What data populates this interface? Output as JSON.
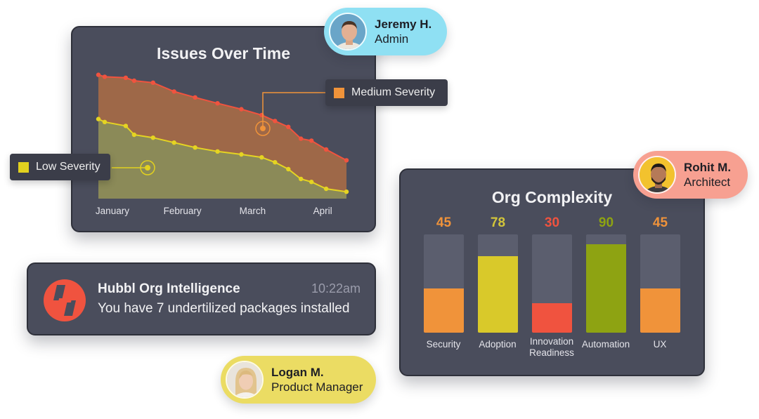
{
  "issues_chart": {
    "title": "Issues Over Time",
    "chart_data": {
      "type": "area",
      "x_labels": [
        "January",
        "February",
        "March",
        "April"
      ],
      "series": [
        {
          "name": "Medium Severity",
          "color": "#f0533f",
          "values": [
            101,
            99,
            98,
            95,
            93,
            84,
            78,
            72,
            66,
            60,
            54,
            48,
            36,
            34,
            25,
            14
          ]
        },
        {
          "name": "Low Severity",
          "color": "#e5d422",
          "values": [
            56,
            53,
            49,
            40,
            37,
            32,
            27,
            23,
            20,
            17,
            12,
            5,
            -5,
            -8,
            -15,
            -18
          ]
        }
      ],
      "point_x": [
        0,
        0.09,
        0.39,
        0.51,
        0.78,
        1.08,
        1.38,
        1.7,
        2.04,
        2.33,
        2.52,
        2.71,
        2.89,
        3.04,
        3.25,
        3.54
      ],
      "x_ticks_at": [
        0.2,
        1.2,
        2.2,
        3.2
      ],
      "ylim": [
        -25,
        105
      ],
      "xlim": [
        0,
        3.6
      ],
      "grid": false,
      "legend_placement": "callouts"
    },
    "legend": {
      "medium_label": "Medium Severity",
      "low_label": "Low Severity",
      "medium_color": "#f0933a",
      "low_color": "#e2d11f"
    }
  },
  "notification": {
    "title": "Hubbl Org Intelligence",
    "time": "10:22am",
    "message": "You have 7 undertilized packages installed",
    "logo": "hubbl-logo-icon",
    "logo_color": "#f0533f"
  },
  "org_complexity": {
    "title": "Org Complexity",
    "chart_data": {
      "type": "bar",
      "categories": [
        "Security",
        "Adoption",
        "Innovation Readiness",
        "Automation",
        "UX"
      ],
      "values": [
        45,
        78,
        30,
        90,
        45
      ],
      "value_labels": [
        "45",
        "78",
        "30",
        "90",
        "45"
      ],
      "colors": [
        "#f0933a",
        "#d9c92a",
        "#f0533f",
        "#8ea312",
        "#f0933a"
      ],
      "label_colors": [
        "#f0933a",
        "#d2c53a",
        "#f0533f",
        "#8ea312",
        "#f0933a"
      ],
      "ylim": [
        0,
        100
      ]
    }
  },
  "personas": {
    "jeremy": {
      "name": "Jeremy H.",
      "role": "Admin",
      "avatar": "avatar-icon"
    },
    "rohit": {
      "name": "Rohit M.",
      "role": "Architect",
      "avatar": "avatar-icon"
    },
    "logan": {
      "name": "Logan M.",
      "role": "Product Manager",
      "avatar": "avatar-icon"
    }
  }
}
